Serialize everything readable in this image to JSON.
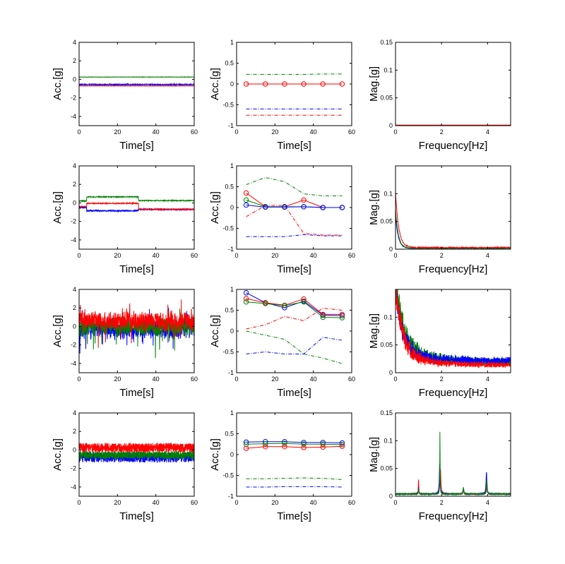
{
  "colors": {
    "blue": "#0000ff",
    "green": "#008000",
    "red": "#ff0000",
    "axis": "#000000"
  },
  "chart_data": [
    {
      "type": "line",
      "panel": "time",
      "row": 0,
      "xlabel": "Time[s]",
      "ylabel": "Acc.[g]",
      "xlim": [
        0,
        60
      ],
      "ylim": [
        -5,
        4
      ],
      "xticks": [
        0,
        20,
        40,
        60
      ],
      "yticks": [
        4,
        2,
        0,
        -2,
        -4
      ],
      "series": [
        {
          "color": "green",
          "signal": {
            "kind": "const",
            "segments": [
              [
                0,
                60,
                0.25
              ]
            ],
            "noise": 0.02
          }
        },
        {
          "color": "blue",
          "signal": {
            "kind": "const",
            "segments": [
              [
                0,
                60,
                -0.55
              ]
            ],
            "noise": 0.05
          }
        },
        {
          "color": "red",
          "signal": {
            "kind": "const",
            "segments": [
              [
                0,
                60,
                -0.7
              ]
            ],
            "noise": 0.02
          }
        }
      ]
    },
    {
      "type": "line",
      "panel": "stats",
      "row": 0,
      "xlabel": "Time[s]",
      "ylabel": "Acc.[g]",
      "xlim": [
        0,
        60
      ],
      "ylim": [
        -1,
        1
      ],
      "xticks": [
        0,
        20,
        40,
        60
      ],
      "yticks": [
        1,
        0.5,
        0,
        -0.5,
        -1
      ],
      "x": [
        5,
        15,
        25,
        35,
        45,
        55
      ],
      "series": [
        {
          "color": "green",
          "style": "dashdot",
          "values": [
            0.23,
            0.23,
            0.23,
            0.23,
            0.24,
            0.24
          ]
        },
        {
          "color": "blue",
          "style": "dashdot",
          "values": [
            -0.6,
            -0.6,
            -0.6,
            -0.6,
            -0.6,
            -0.6
          ]
        },
        {
          "color": "red",
          "style": "dashdot",
          "values": [
            -0.75,
            -0.75,
            -0.75,
            -0.75,
            -0.75,
            -0.75
          ]
        },
        {
          "color": "red",
          "style": "marker",
          "values": [
            0,
            0,
            0,
            0,
            0,
            0
          ]
        }
      ]
    },
    {
      "type": "line",
      "panel": "fft",
      "row": 0,
      "xlabel": "Frequency[Hz]",
      "ylabel": "Mag.[g]",
      "xlim": [
        0,
        5
      ],
      "ylim": [
        0,
        0.15
      ],
      "xticks": [
        0,
        2,
        4
      ],
      "yticks": [
        0.15,
        0.1,
        0.05,
        0
      ],
      "series": [
        {
          "color": "green",
          "signal": {
            "kind": "flat",
            "level": 0.0008
          }
        },
        {
          "color": "blue",
          "signal": {
            "kind": "flat",
            "level": 0.0006
          }
        },
        {
          "color": "red",
          "signal": {
            "kind": "flat",
            "level": 0.001
          }
        }
      ]
    },
    {
      "type": "line",
      "panel": "time",
      "row": 1,
      "xlabel": "Time[s]",
      "ylabel": "Acc.[g]",
      "xlim": [
        0,
        60
      ],
      "ylim": [
        -5,
        4
      ],
      "xticks": [
        0,
        20,
        40,
        60
      ],
      "yticks": [
        4,
        2,
        0,
        -2,
        -4
      ],
      "series": [
        {
          "color": "green",
          "signal": {
            "kind": "const",
            "segments": [
              [
                0,
                4,
                0.2
              ],
              [
                4,
                31,
                0.65
              ],
              [
                31,
                60,
                0.25
              ]
            ],
            "noise": 0.05
          }
        },
        {
          "color": "blue",
          "signal": {
            "kind": "const",
            "segments": [
              [
                0,
                4,
                -0.5
              ],
              [
                4,
                31,
                -0.85
              ],
              [
                31,
                60,
                -0.7
              ]
            ],
            "noise": 0.07
          }
        },
        {
          "color": "red",
          "signal": {
            "kind": "const",
            "segments": [
              [
                0,
                4,
                -0.4
              ],
              [
                4,
                31,
                -0.05
              ],
              [
                31,
                60,
                -0.7
              ]
            ],
            "noise": 0.05
          }
        }
      ]
    },
    {
      "type": "line",
      "panel": "stats",
      "row": 1,
      "xlabel": "Time[s]",
      "ylabel": "Acc.[g]",
      "xlim": [
        0,
        60
      ],
      "ylim": [
        -1,
        1
      ],
      "xticks": [
        0,
        20,
        40,
        60
      ],
      "yticks": [
        1,
        0.5,
        0,
        -0.5,
        -1
      ],
      "x": [
        5,
        15,
        25,
        35,
        45,
        55
      ],
      "series": [
        {
          "color": "green",
          "style": "dashdot",
          "values": [
            0.55,
            0.72,
            0.62,
            0.33,
            0.28,
            0.28
          ]
        },
        {
          "color": "red",
          "style": "dashdot",
          "values": [
            -0.22,
            0.05,
            0.05,
            -0.62,
            -0.66,
            -0.66
          ]
        },
        {
          "color": "blue",
          "style": "dashdot",
          "values": [
            -0.7,
            -0.7,
            -0.7,
            -0.65,
            -0.68,
            -0.68
          ]
        },
        {
          "color": "red",
          "style": "marker",
          "values": [
            0.35,
            0.02,
            0.02,
            0.18,
            0.0,
            0.0
          ]
        },
        {
          "color": "green",
          "style": "marker",
          "values": [
            0.18,
            0.02,
            0.02,
            0.02,
            0.0,
            0.0
          ]
        },
        {
          "color": "blue",
          "style": "marker",
          "values": [
            0.06,
            0.01,
            0.01,
            0.02,
            0.0,
            0.0
          ]
        }
      ]
    },
    {
      "type": "line",
      "panel": "fft",
      "row": 1,
      "xlabel": "Frequency[Hz]",
      "ylabel": "Mag.[g]",
      "xlim": [
        0,
        5
      ],
      "ylim": [
        0,
        0.15
      ],
      "xticks": [
        0,
        2,
        4
      ],
      "yticks": [
        0.1,
        0.05,
        0
      ],
      "series": [
        {
          "color": "blue",
          "signal": {
            "kind": "decay",
            "peak": 0.06,
            "tau": 0.12,
            "floor": 0.001,
            "noise": 0.0015
          }
        },
        {
          "color": "green",
          "signal": {
            "kind": "decay",
            "peak": 0.07,
            "tau": 0.12,
            "floor": 0.001,
            "noise": 0.0015
          }
        },
        {
          "color": "red",
          "signal": {
            "kind": "decay",
            "peak": 0.1,
            "tau": 0.14,
            "floor": 0.002,
            "noise": 0.002
          }
        }
      ]
    },
    {
      "type": "line",
      "panel": "time",
      "row": 2,
      "xlabel": "Time[s]",
      "ylabel": "Acc.[g]",
      "xlim": [
        0,
        60
      ],
      "ylim": [
        -5,
        4
      ],
      "xticks": [
        0,
        20,
        40,
        60
      ],
      "yticks": [
        4,
        2,
        0,
        -2,
        -4
      ],
      "series": [
        {
          "color": "blue",
          "signal": {
            "kind": "random",
            "mean": -0.2,
            "amp": 1.1,
            "spikes": 1.6
          }
        },
        {
          "color": "green",
          "signal": {
            "kind": "random",
            "mean": 0.0,
            "amp": 1.0,
            "spikes": 1.8
          }
        },
        {
          "color": "red",
          "signal": {
            "kind": "random",
            "mean": 0.6,
            "amp": 1.0,
            "spikes": 1.6
          }
        }
      ]
    },
    {
      "type": "line",
      "panel": "stats",
      "row": 2,
      "xlabel": "Time[s]",
      "ylabel": "Acc.[g]",
      "xlim": [
        0,
        60
      ],
      "ylim": [
        -1,
        1
      ],
      "xticks": [
        0,
        20,
        40,
        60
      ],
      "yticks": [
        1,
        0.5,
        0,
        -0.5,
        -1
      ],
      "x": [
        5,
        15,
        25,
        35,
        45,
        55
      ],
      "series": [
        {
          "color": "red",
          "style": "dashdot",
          "values": [
            0.05,
            0.15,
            0.35,
            0.25,
            0.55,
            0.5
          ]
        },
        {
          "color": "green",
          "style": "dashdot",
          "values": [
            0.0,
            -0.1,
            -0.2,
            -0.55,
            -0.65,
            -0.78
          ]
        },
        {
          "color": "blue",
          "style": "dashdot",
          "values": [
            -0.55,
            -0.5,
            -0.55,
            -0.55,
            -0.15,
            -0.22
          ]
        },
        {
          "color": "blue",
          "style": "marker",
          "values": [
            0.92,
            0.68,
            0.56,
            0.72,
            0.38,
            0.37
          ]
        },
        {
          "color": "red",
          "style": "marker",
          "values": [
            0.78,
            0.68,
            0.62,
            0.77,
            0.4,
            0.4
          ]
        },
        {
          "color": "green",
          "style": "marker",
          "values": [
            0.7,
            0.66,
            0.61,
            0.7,
            0.33,
            0.32
          ]
        }
      ]
    },
    {
      "type": "line",
      "panel": "fft",
      "row": 2,
      "xlabel": "Frequency[Hz]",
      "ylabel": "Mag.[g]",
      "xlim": [
        0,
        5
      ],
      "ylim": [
        0,
        0.15
      ],
      "xticks": [
        0,
        2,
        4
      ],
      "yticks": [
        0.1,
        0.05,
        0
      ],
      "series": [
        {
          "color": "green",
          "signal": {
            "kind": "noisy-decay",
            "peak": 0.13,
            "tau": 0.35,
            "floor": 0.012,
            "noise": 0.013
          }
        },
        {
          "color": "blue",
          "signal": {
            "kind": "noisy-decay",
            "peak": 0.11,
            "tau": 0.3,
            "floor": 0.014,
            "noise": 0.014
          }
        },
        {
          "color": "red",
          "signal": {
            "kind": "noisy-decay",
            "peak": 0.12,
            "tau": 0.3,
            "floor": 0.009,
            "noise": 0.009
          }
        }
      ]
    },
    {
      "type": "line",
      "panel": "time",
      "row": 3,
      "xlabel": "Time[s]",
      "ylabel": "Acc.[g]",
      "xlim": [
        0,
        60
      ],
      "ylim": [
        -5,
        4
      ],
      "xticks": [
        0,
        20,
        40,
        60
      ],
      "yticks": [
        4,
        2,
        0,
        -2,
        -4
      ],
      "series": [
        {
          "color": "blue",
          "signal": {
            "kind": "band",
            "mean": -0.8,
            "amp": 0.55
          }
        },
        {
          "color": "green",
          "signal": {
            "kind": "band",
            "mean": -0.55,
            "amp": 0.45
          }
        },
        {
          "color": "red",
          "signal": {
            "kind": "band",
            "mean": 0.25,
            "amp": 0.5
          }
        }
      ]
    },
    {
      "type": "line",
      "panel": "stats",
      "row": 3,
      "xlabel": "Time[s]",
      "ylabel": "Acc.[g]",
      "xlim": [
        0,
        60
      ],
      "ylim": [
        -1,
        1
      ],
      "xticks": [
        0,
        20,
        40,
        60
      ],
      "yticks": [
        1,
        0.5,
        0,
        -0.5,
        -1
      ],
      "x": [
        5,
        15,
        25,
        35,
        45,
        55
      ],
      "series": [
        {
          "color": "green",
          "style": "dashdot",
          "values": [
            -0.58,
            -0.58,
            -0.57,
            -0.56,
            -0.57,
            -0.6
          ]
        },
        {
          "color": "blue",
          "style": "dashdot",
          "values": [
            -0.78,
            -0.78,
            -0.77,
            -0.77,
            -0.77,
            -0.78
          ]
        },
        {
          "color": "blue",
          "style": "marker",
          "values": [
            0.3,
            0.31,
            0.31,
            0.29,
            0.29,
            0.28
          ]
        },
        {
          "color": "green",
          "style": "marker",
          "values": [
            0.25,
            0.26,
            0.27,
            0.25,
            0.25,
            0.24
          ]
        },
        {
          "color": "red",
          "style": "marker",
          "values": [
            0.15,
            0.19,
            0.19,
            0.17,
            0.18,
            0.2
          ]
        }
      ]
    },
    {
      "type": "line",
      "panel": "fft",
      "row": 3,
      "xlabel": "Frequency[Hz]",
      "ylabel": "Mag.[g]",
      "xlim": [
        0,
        5
      ],
      "ylim": [
        0,
        0.15
      ],
      "xticks": [
        0,
        2,
        4
      ],
      "yticks": [
        0.15,
        0.1,
        0.05,
        0
      ],
      "series": [
        {
          "color": "red",
          "signal": {
            "kind": "peaks",
            "floor": 0.003,
            "noise": 0.002,
            "peaks": [
              [
                1.0,
                0.025,
                0.03
              ],
              [
                1.95,
                0.045,
                0.06
              ],
              [
                2.95,
                0.008,
                0.05
              ],
              [
                3.95,
                0.02,
                0.05
              ]
            ]
          }
        },
        {
          "color": "blue",
          "signal": {
            "kind": "peaks",
            "floor": 0.003,
            "noise": 0.002,
            "peaks": [
              [
                1.0,
                0.012,
                0.03
              ],
              [
                1.92,
                0.055,
                0.05
              ],
              [
                2.95,
                0.01,
                0.05
              ],
              [
                3.95,
                0.04,
                0.05
              ]
            ]
          }
        },
        {
          "color": "green",
          "signal": {
            "kind": "peaks",
            "floor": 0.003,
            "noise": 0.002,
            "peaks": [
              [
                1.0,
                0.01,
                0.03
              ],
              [
                1.93,
                0.115,
                0.02
              ],
              [
                2.95,
                0.012,
                0.05
              ],
              [
                3.97,
                0.025,
                0.04
              ]
            ]
          }
        }
      ]
    }
  ]
}
